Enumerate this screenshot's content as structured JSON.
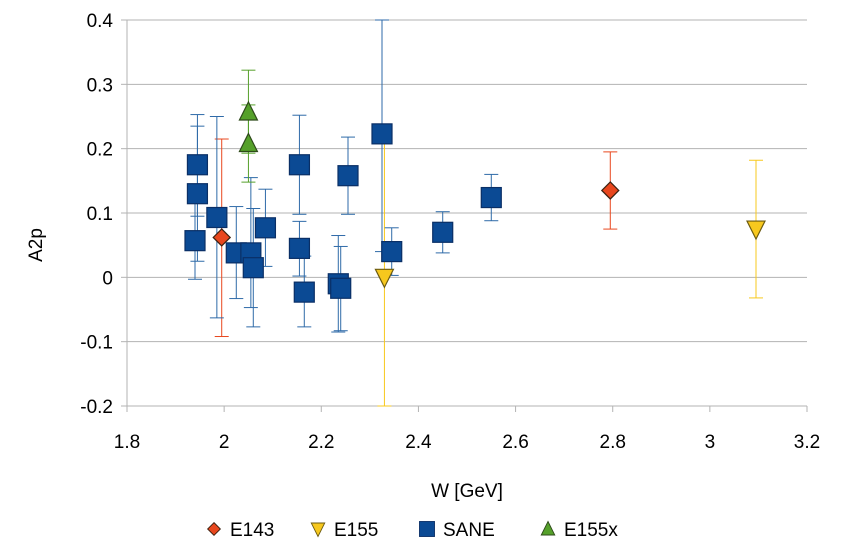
{
  "chart_data": {
    "type": "scatter",
    "title": "",
    "xlabel": "W [GeV]",
    "ylabel": "A2p",
    "xlim": [
      1.8,
      3.2
    ],
    "ylim": [
      -0.2,
      0.4
    ],
    "x_ticks": [
      "1.8",
      "2",
      "2.2",
      "2.4",
      "2.6",
      "2.8",
      "3",
      "3.2"
    ],
    "y_ticks": [
      "0.4",
      "0.3",
      "0.2",
      "0.1",
      "0",
      "-0.1",
      "-0.2"
    ],
    "grid": "horizontal",
    "legend_position": "bottom",
    "series": [
      {
        "name": "E143",
        "marker": "diamond",
        "color": "#e8471e",
        "points": [
          {
            "x": 1.995,
            "y": 0.062,
            "lo": -0.092,
            "hi": 0.215
          },
          {
            "x": 2.795,
            "y": 0.135,
            "lo": 0.075,
            "hi": 0.195
          }
        ]
      },
      {
        "name": "E155",
        "marker": "triangle-down",
        "color": "#f7c81e",
        "points": [
          {
            "x": 2.33,
            "y": 0.0,
            "lo": -0.2,
            "hi": 0.21
          },
          {
            "x": 3.095,
            "y": 0.075,
            "lo": -0.032,
            "hi": 0.182
          }
        ]
      },
      {
        "name": "SANE",
        "marker": "square",
        "color": "#0b4a94",
        "points": [
          {
            "x": 1.94,
            "y": 0.057,
            "lo": -0.003,
            "hi": 0.117
          },
          {
            "x": 1.945,
            "y": 0.13,
            "lo": 0.025,
            "hi": 0.235
          },
          {
            "x": 1.945,
            "y": 0.175,
            "lo": 0.095,
            "hi": 0.253
          },
          {
            "x": 1.985,
            "y": 0.093,
            "lo": -0.063,
            "hi": 0.25
          },
          {
            "x": 2.025,
            "y": 0.038,
            "lo": -0.033,
            "hi": 0.11
          },
          {
            "x": 2.055,
            "y": 0.038,
            "lo": -0.047,
            "hi": 0.155
          },
          {
            "x": 2.06,
            "y": 0.015,
            "lo": -0.077,
            "hi": 0.107
          },
          {
            "x": 2.085,
            "y": 0.077,
            "lo": 0.017,
            "hi": 0.137
          },
          {
            "x": 2.155,
            "y": 0.045,
            "lo": 0.002,
            "hi": 0.087
          },
          {
            "x": 2.155,
            "y": 0.175,
            "lo": 0.098,
            "hi": 0.252
          },
          {
            "x": 2.165,
            "y": -0.023,
            "lo": -0.077,
            "hi": 0.033
          },
          {
            "x": 2.235,
            "y": -0.01,
            "lo": -0.085,
            "hi": 0.065
          },
          {
            "x": 2.24,
            "y": -0.017,
            "lo": -0.083,
            "hi": 0.048
          },
          {
            "x": 2.255,
            "y": 0.158,
            "lo": 0.098,
            "hi": 0.218
          },
          {
            "x": 2.325,
            "y": 0.223,
            "lo": 0.04,
            "hi": 0.4
          },
          {
            "x": 2.345,
            "y": 0.04,
            "lo": 0.003,
            "hi": 0.077
          },
          {
            "x": 2.45,
            "y": 0.07,
            "lo": 0.038,
            "hi": 0.102
          },
          {
            "x": 2.55,
            "y": 0.124,
            "lo": 0.088,
            "hi": 0.16
          }
        ]
      },
      {
        "name": "E155x",
        "marker": "triangle-up",
        "color": "#55a02a",
        "points": [
          {
            "x": 2.05,
            "y": 0.208,
            "lo": 0.148,
            "hi": 0.268
          },
          {
            "x": 2.05,
            "y": 0.257,
            "lo": 0.193,
            "hi": 0.322
          }
        ]
      }
    ]
  }
}
